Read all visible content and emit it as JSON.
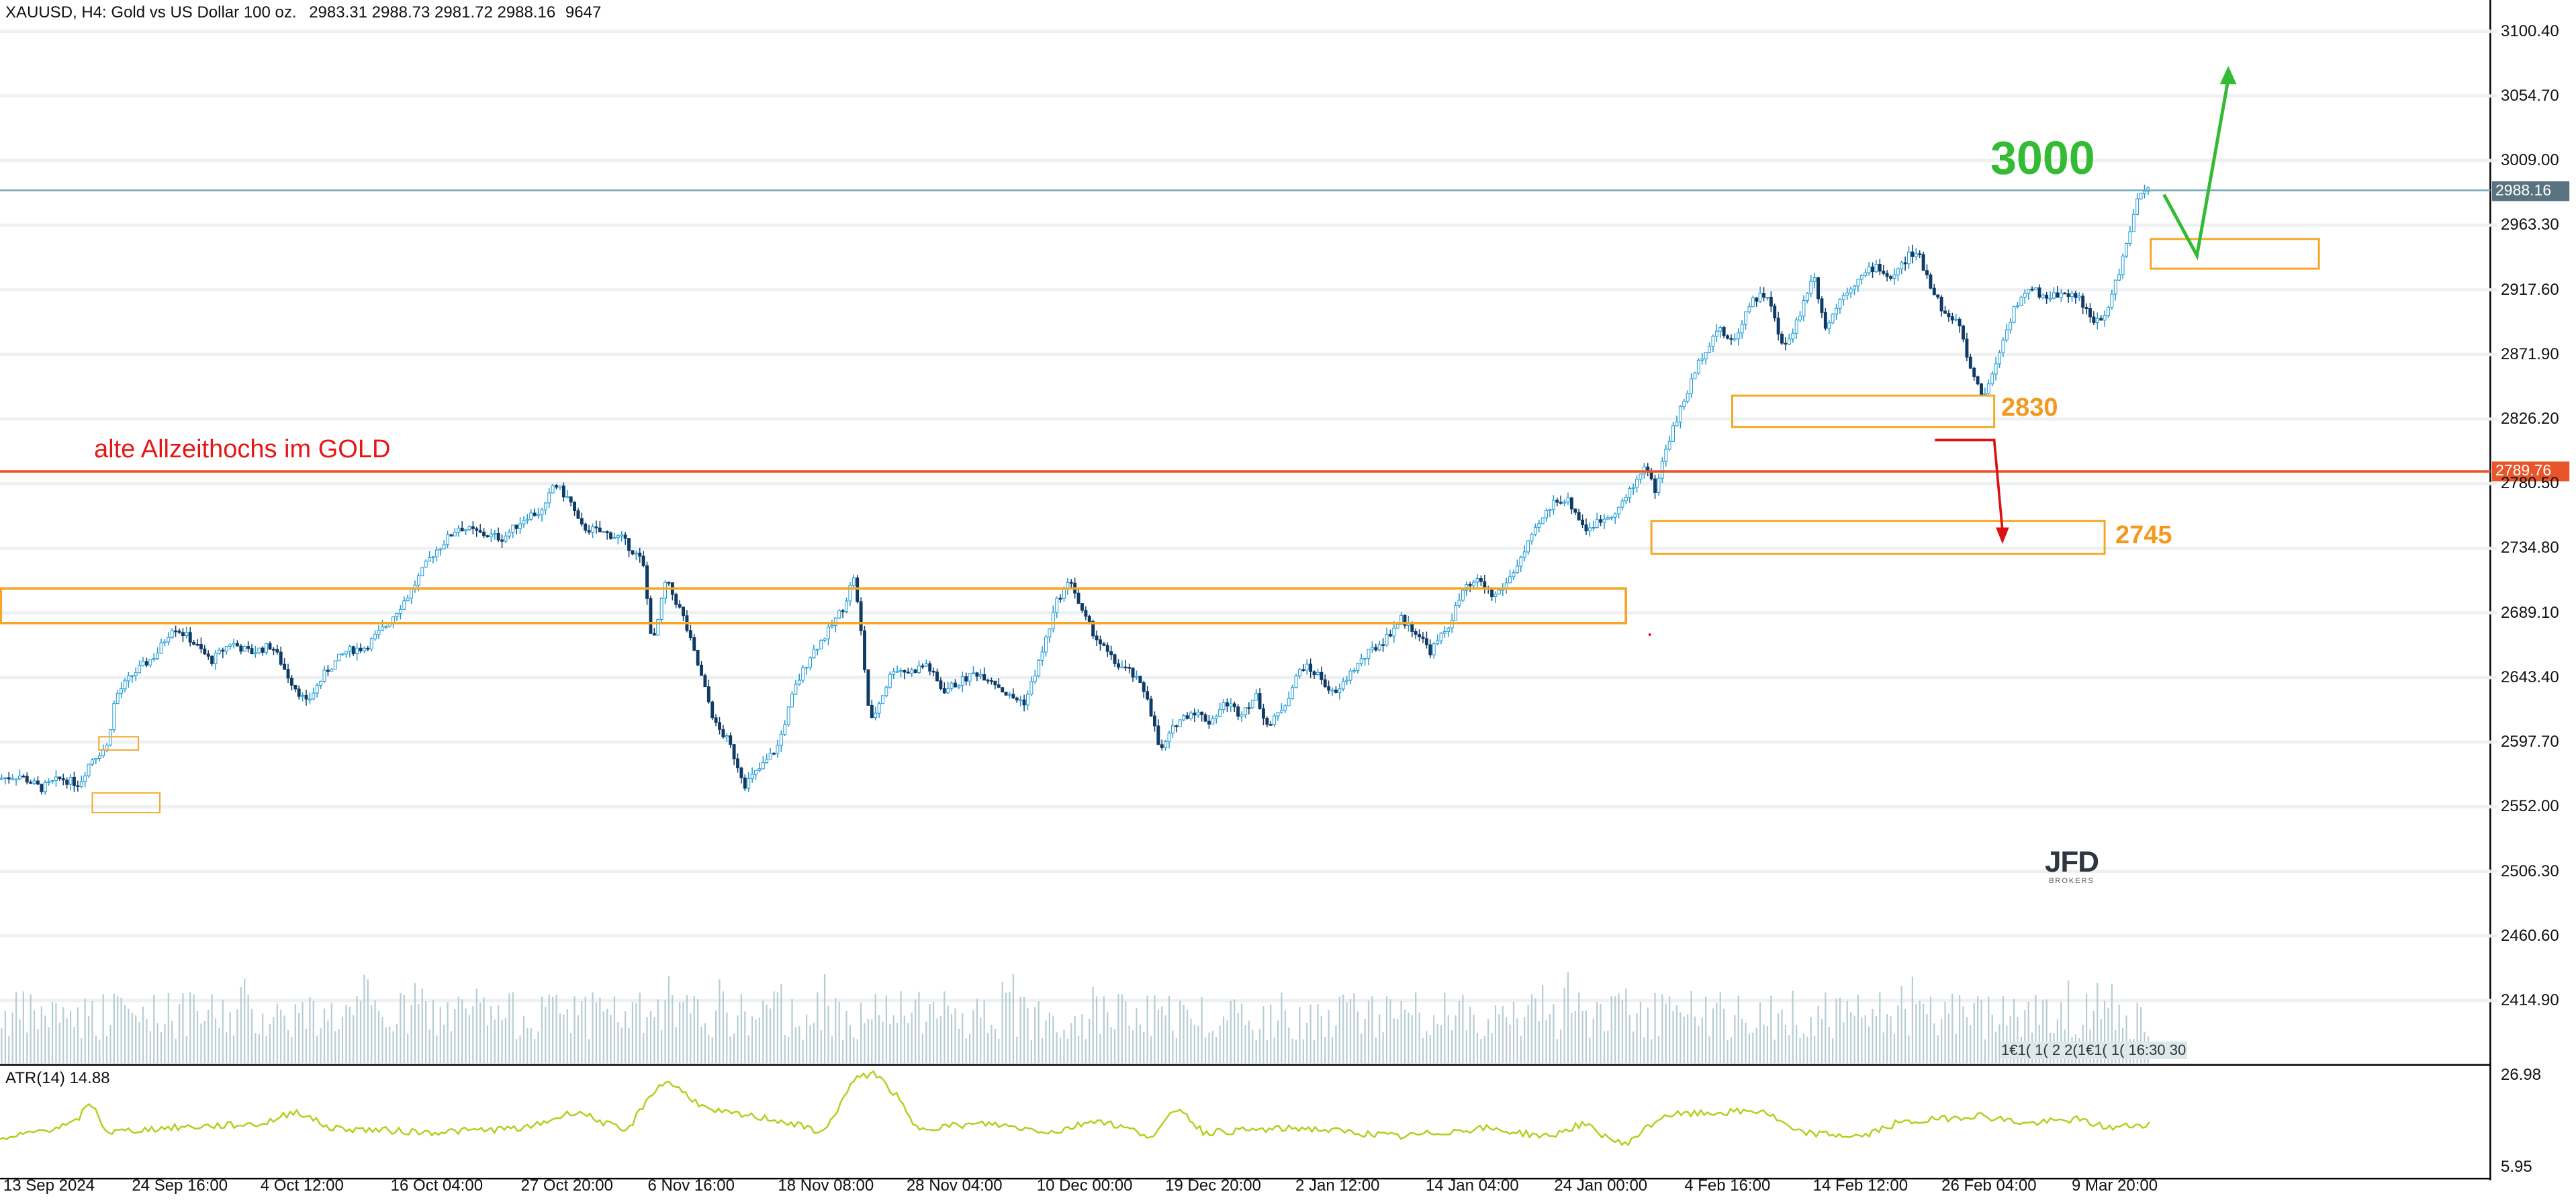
{
  "header": {
    "symbol": "XAUUSD",
    "timeframe": "H4:",
    "description": "Gold vs US Dollar 100 oz.",
    "ohlc": "2983.31 2988.73 2981.72 2988.16",
    "volume": "9647"
  },
  "price_axis": {
    "ticks": [
      "3100.40",
      "3054.70",
      "3009.00",
      "2963.30",
      "2917.60",
      "2871.90",
      "2826.20",
      "2780.50",
      "2734.80",
      "2689.10",
      "2643.40",
      "2597.70",
      "2552.00",
      "2506.30",
      "2460.60",
      "2414.90"
    ],
    "current_price": "2988.16",
    "resistance_price": "2789.76"
  },
  "atr": {
    "label": "ATR(14) 14.88",
    "ticks": [
      "26.98",
      "5.95"
    ]
  },
  "time_axis": {
    "labels": [
      "13 Sep 2024",
      "24 Sep 16:00",
      "4 Oct 12:00",
      "16 Oct 04:00",
      "27 Oct 20:00",
      "6 Nov 16:00",
      "18 Nov 08:00",
      "28 Nov 04:00",
      "10 Dec 00:00",
      "19 Dec 20:00",
      "2 Jan 12:00",
      "14 Jan 04:00",
      "24 Jan 00:00",
      "4 Feb 16:00",
      "14 Feb 12:00",
      "26 Feb 04:00",
      "9 Mar 20:00"
    ]
  },
  "annotations": {
    "resistance_text": "alte Allzeithochs im GOLD",
    "target_3000": "3000",
    "level_2830": "2830",
    "level_2745": "2745",
    "volume_overlay": "1€1( 1( 2 2(1€1( 1( 16:30 30"
  },
  "logo": {
    "brand": "JFD",
    "sub": "BROKERS"
  },
  "colors": {
    "candle": "#1a98d4",
    "candle_dark": "#0f3a66",
    "resistance_line": "#e8552a",
    "zone": "#f5a623",
    "green": "#33bb33",
    "red": "#dd1111",
    "atr": "#b8cc1a",
    "volume": "#b7cdd3"
  },
  "chart_data": {
    "type": "candlestick",
    "title": "XAUUSD, H4: Gold vs US Dollar 100 oz.",
    "ylim": [
      2385,
      3120
    ],
    "x_range": [
      "13 Sep 2024",
      "9 Mar 20:00"
    ],
    "close_path": [
      [
        0,
        2572
      ],
      [
        12,
        2574
      ],
      [
        25,
        2565
      ],
      [
        37,
        2572
      ],
      [
        48,
        2568
      ],
      [
        55,
        2585
      ],
      [
        65,
        2595
      ],
      [
        70,
        2630
      ],
      [
        80,
        2645
      ],
      [
        95,
        2660
      ],
      [
        105,
        2680
      ],
      [
        115,
        2671
      ],
      [
        128,
        2655
      ],
      [
        140,
        2668
      ],
      [
        152,
        2661
      ],
      [
        165,
        2666
      ],
      [
        176,
        2642
      ],
      [
        186,
        2625
      ],
      [
        198,
        2648
      ],
      [
        210,
        2662
      ],
      [
        222,
        2665
      ],
      [
        234,
        2680
      ],
      [
        248,
        2702
      ],
      [
        262,
        2730
      ],
      [
        278,
        2750
      ],
      [
        292,
        2745
      ],
      [
        305,
        2742
      ],
      [
        320,
        2758
      ],
      [
        330,
        2761
      ],
      [
        336,
        2781
      ],
      [
        346,
        2768
      ],
      [
        352,
        2750
      ],
      [
        362,
        2747
      ],
      [
        377,
        2742
      ],
      [
        390,
        2725
      ],
      [
        396,
        2665
      ],
      [
        404,
        2712
      ],
      [
        414,
        2688
      ],
      [
        424,
        2650
      ],
      [
        434,
        2610
      ],
      [
        442,
        2598
      ],
      [
        452,
        2568
      ],
      [
        462,
        2580
      ],
      [
        472,
        2595
      ],
      [
        482,
        2635
      ],
      [
        492,
        2660
      ],
      [
        502,
        2675
      ],
      [
        512,
        2694
      ],
      [
        518,
        2715
      ],
      [
        522,
        2680
      ],
      [
        528,
        2610
      ],
      [
        535,
        2630
      ],
      [
        542,
        2650
      ],
      [
        552,
        2647
      ],
      [
        562,
        2653
      ],
      [
        572,
        2634
      ],
      [
        582,
        2640
      ],
      [
        592,
        2647
      ],
      [
        602,
        2642
      ],
      [
        612,
        2630
      ],
      [
        622,
        2626
      ],
      [
        632,
        2660
      ],
      [
        642,
        2700
      ],
      [
        650,
        2712
      ],
      [
        656,
        2690
      ],
      [
        666,
        2670
      ],
      [
        676,
        2654
      ],
      [
        686,
        2647
      ],
      [
        696,
        2631
      ],
      [
        704,
        2590
      ],
      [
        714,
        2612
      ],
      [
        724,
        2620
      ],
      [
        734,
        2612
      ],
      [
        744,
        2626
      ],
      [
        752,
        2618
      ],
      [
        762,
        2630
      ],
      [
        770,
        2608
      ],
      [
        780,
        2626
      ],
      [
        790,
        2652
      ],
      [
        800,
        2645
      ],
      [
        810,
        2630
      ],
      [
        820,
        2648
      ],
      [
        830,
        2660
      ],
      [
        840,
        2670
      ],
      [
        850,
        2685
      ],
      [
        860,
        2675
      ],
      [
        868,
        2662
      ],
      [
        878,
        2678
      ],
      [
        888,
        2705
      ],
      [
        898,
        2712
      ],
      [
        906,
        2700
      ],
      [
        914,
        2710
      ],
      [
        924,
        2730
      ],
      [
        934,
        2752
      ],
      [
        944,
        2770
      ],
      [
        952,
        2768
      ],
      [
        962,
        2748
      ],
      [
        972,
        2755
      ],
      [
        982,
        2763
      ],
      [
        992,
        2780
      ],
      [
        998,
        2795
      ],
      [
        1004,
        2775
      ],
      [
        1012,
        2810
      ],
      [
        1022,
        2840
      ],
      [
        1032,
        2870
      ],
      [
        1042,
        2890
      ],
      [
        1052,
        2880
      ],
      [
        1062,
        2910
      ],
      [
        1072,
        2915
      ],
      [
        1082,
        2875
      ],
      [
        1092,
        2900
      ],
      [
        1100,
        2930
      ],
      [
        1108,
        2890
      ],
      [
        1118,
        2915
      ],
      [
        1128,
        2925
      ],
      [
        1138,
        2935
      ],
      [
        1148,
        2925
      ],
      [
        1158,
        2942
      ],
      [
        1164,
        2942
      ],
      [
        1172,
        2920
      ],
      [
        1180,
        2900
      ],
      [
        1188,
        2895
      ],
      [
        1196,
        2860
      ],
      [
        1204,
        2842
      ],
      [
        1212,
        2870
      ],
      [
        1222,
        2905
      ],
      [
        1232,
        2918
      ],
      [
        1242,
        2912
      ],
      [
        1252,
        2916
      ],
      [
        1262,
        2912
      ],
      [
        1270,
        2893
      ],
      [
        1278,
        2900
      ],
      [
        1288,
        2940
      ],
      [
        1298,
        2985
      ],
      [
        1304,
        2988
      ]
    ]
  }
}
